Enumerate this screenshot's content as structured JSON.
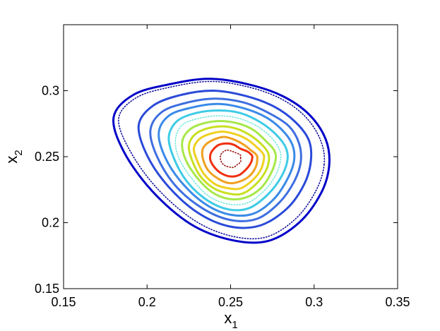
{
  "chart_data": {
    "type": "line",
    "title": "",
    "xlabel": {
      "base": "x",
      "sub": "1"
    },
    "ylabel": {
      "base": "x",
      "sub": "2"
    },
    "xlim": [
      0.15,
      0.35
    ],
    "ylim": [
      0.15,
      0.35
    ],
    "xticks": [
      0.15,
      0.2,
      0.25,
      0.3,
      0.35
    ],
    "xtick_labels": [
      "0.15",
      "0.2",
      "0.25",
      "0.3",
      "0.35"
    ],
    "yticks": [
      0.15,
      0.2,
      0.25,
      0.3
    ],
    "ytick_labels": [
      "0.15",
      "0.2",
      "0.25",
      "0.3"
    ],
    "grid": false,
    "legend": "none",
    "center": [
      0.251,
      0.25
    ],
    "series": [
      {
        "x": [
          0.309,
          0.304,
          0.291,
          0.272,
          0.25,
          0.226,
          0.203,
          0.186,
          0.18,
          0.192,
          0.214,
          0.237,
          0.26,
          0.281,
          0.297,
          0.307,
          0.309
        ],
        "y": [
          0.243,
          0.222,
          0.2,
          0.186,
          0.187,
          0.199,
          0.224,
          0.254,
          0.28,
          0.297,
          0.305,
          0.309,
          0.305,
          0.296,
          0.282,
          0.263,
          0.243
        ],
        "color": "#0000c8",
        "style": "solid"
      },
      {
        "x": [
          0.306,
          0.301,
          0.289,
          0.271,
          0.25,
          0.228,
          0.206,
          0.19,
          0.183,
          0.194,
          0.215,
          0.238,
          0.26,
          0.28,
          0.295,
          0.304,
          0.306
        ],
        "y": [
          0.244,
          0.224,
          0.203,
          0.189,
          0.19,
          0.202,
          0.226,
          0.254,
          0.279,
          0.295,
          0.303,
          0.307,
          0.303,
          0.294,
          0.28,
          0.262,
          0.244
        ],
        "color": "#10109a",
        "style": "dotted"
      },
      {
        "x": [
          0.298,
          0.294,
          0.284,
          0.268,
          0.25,
          0.231,
          0.213,
          0.2,
          0.195,
          0.204,
          0.221,
          0.24,
          0.259,
          0.276,
          0.289,
          0.297,
          0.298
        ],
        "y": [
          0.246,
          0.229,
          0.211,
          0.198,
          0.197,
          0.207,
          0.227,
          0.251,
          0.274,
          0.289,
          0.297,
          0.3,
          0.296,
          0.288,
          0.276,
          0.262,
          0.246
        ],
        "color": "#2a4ad9",
        "style": "solid"
      },
      {
        "x": [
          0.292,
          0.288,
          0.279,
          0.266,
          0.25,
          0.233,
          0.217,
          0.206,
          0.202,
          0.209,
          0.224,
          0.241,
          0.258,
          0.273,
          0.285,
          0.291,
          0.292
        ],
        "y": [
          0.246,
          0.231,
          0.215,
          0.203,
          0.202,
          0.211,
          0.228,
          0.25,
          0.27,
          0.284,
          0.291,
          0.294,
          0.291,
          0.283,
          0.273,
          0.26,
          0.246
        ],
        "color": "#3e6fe0",
        "style": "solid"
      },
      {
        "x": [
          0.288,
          0.284,
          0.276,
          0.264,
          0.25,
          0.235,
          0.221,
          0.211,
          0.207,
          0.213,
          0.226,
          0.242,
          0.257,
          0.271,
          0.281,
          0.287,
          0.288
        ],
        "y": [
          0.247,
          0.233,
          0.218,
          0.207,
          0.206,
          0.214,
          0.23,
          0.249,
          0.268,
          0.281,
          0.287,
          0.29,
          0.287,
          0.28,
          0.27,
          0.259,
          0.247
        ],
        "color": "#3a8ae8",
        "style": "solid"
      },
      {
        "x": [
          0.284,
          0.28,
          0.272,
          0.261,
          0.249,
          0.236,
          0.224,
          0.216,
          0.213,
          0.218,
          0.229,
          0.243,
          0.256,
          0.268,
          0.277,
          0.283,
          0.284
        ],
        "y": [
          0.247,
          0.234,
          0.221,
          0.211,
          0.21,
          0.217,
          0.231,
          0.249,
          0.265,
          0.277,
          0.283,
          0.285,
          0.283,
          0.276,
          0.267,
          0.257,
          0.247
        ],
        "color": "#3ecbe5",
        "style": "solid"
      },
      {
        "x": [
          0.28,
          0.277,
          0.27,
          0.26,
          0.249,
          0.237,
          0.227,
          0.219,
          0.217,
          0.221,
          0.231,
          0.243,
          0.255,
          0.266,
          0.274,
          0.279,
          0.28
        ],
        "y": [
          0.248,
          0.236,
          0.224,
          0.215,
          0.214,
          0.22,
          0.233,
          0.249,
          0.263,
          0.274,
          0.279,
          0.281,
          0.279,
          0.273,
          0.265,
          0.256,
          0.248
        ],
        "color": "#6fe8d8",
        "style": "dotted"
      },
      {
        "x": [
          0.277,
          0.274,
          0.268,
          0.259,
          0.249,
          0.239,
          0.23,
          0.223,
          0.221,
          0.225,
          0.233,
          0.244,
          0.255,
          0.264,
          0.271,
          0.276,
          0.277
        ],
        "y": [
          0.248,
          0.237,
          0.226,
          0.219,
          0.218,
          0.223,
          0.234,
          0.248,
          0.261,
          0.27,
          0.275,
          0.277,
          0.275,
          0.27,
          0.262,
          0.255,
          0.248
        ],
        "color": "#a7e84a",
        "style": "solid"
      },
      {
        "x": [
          0.273,
          0.271,
          0.265,
          0.257,
          0.249,
          0.24,
          0.232,
          0.227,
          0.225,
          0.228,
          0.235,
          0.245,
          0.254,
          0.262,
          0.268,
          0.272,
          0.273
        ],
        "y": [
          0.248,
          0.239,
          0.229,
          0.222,
          0.222,
          0.226,
          0.235,
          0.247,
          0.258,
          0.266,
          0.271,
          0.273,
          0.271,
          0.266,
          0.26,
          0.254,
          0.248
        ],
        "color": "#c8e020",
        "style": "solid"
      },
      {
        "x": [
          0.27,
          0.268,
          0.263,
          0.256,
          0.249,
          0.241,
          0.234,
          0.23,
          0.228,
          0.231,
          0.237,
          0.245,
          0.253,
          0.26,
          0.265,
          0.269,
          0.27
        ],
        "y": [
          0.249,
          0.24,
          0.232,
          0.226,
          0.226,
          0.229,
          0.237,
          0.247,
          0.256,
          0.263,
          0.267,
          0.269,
          0.267,
          0.263,
          0.258,
          0.253,
          0.249
        ],
        "color": "#f0d020",
        "style": "solid"
      },
      {
        "x": [
          0.266,
          0.265,
          0.261,
          0.255,
          0.249,
          0.243,
          0.237,
          0.234,
          0.233,
          0.235,
          0.24,
          0.246,
          0.252,
          0.258,
          0.262,
          0.265,
          0.266
        ],
        "y": [
          0.249,
          0.242,
          0.235,
          0.231,
          0.23,
          0.233,
          0.239,
          0.246,
          0.254,
          0.259,
          0.263,
          0.265,
          0.263,
          0.259,
          0.255,
          0.252,
          0.249
        ],
        "color": "#f0a020",
        "style": "solid"
      },
      {
        "x": [
          0.263,
          0.262,
          0.259,
          0.255,
          0.25,
          0.245,
          0.241,
          0.238,
          0.238,
          0.24,
          0.243,
          0.248,
          0.252,
          0.256,
          0.26,
          0.262,
          0.263
        ],
        "y": [
          0.25,
          0.245,
          0.24,
          0.236,
          0.235,
          0.237,
          0.241,
          0.247,
          0.252,
          0.256,
          0.259,
          0.26,
          0.259,
          0.256,
          0.254,
          0.252,
          0.25
        ],
        "color": "#f03010",
        "style": "solid"
      },
      {
        "x": [
          0.256,
          0.256,
          0.254,
          0.252,
          0.25,
          0.247,
          0.245,
          0.244,
          0.244,
          0.245,
          0.246,
          0.248,
          0.251,
          0.253,
          0.255,
          0.256,
          0.256
        ],
        "y": [
          0.249,
          0.246,
          0.244,
          0.242,
          0.242,
          0.243,
          0.245,
          0.248,
          0.251,
          0.253,
          0.254,
          0.255,
          0.254,
          0.253,
          0.252,
          0.251,
          0.249
        ],
        "color": "#9a1010",
        "style": "dotted"
      }
    ]
  }
}
